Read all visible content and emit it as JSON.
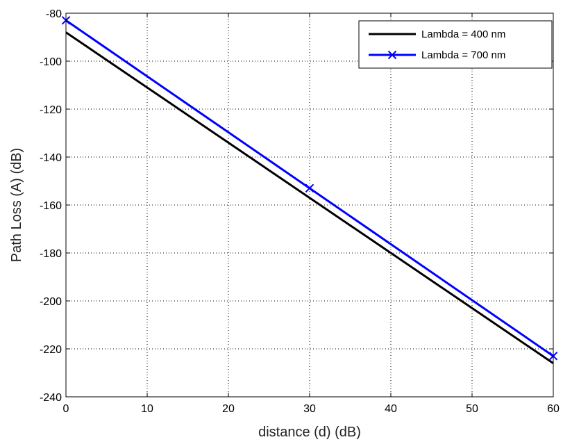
{
  "chart_data": {
    "type": "line",
    "xlabel": "distance (d) (dB)",
    "ylabel": "Path Loss (A)  (dB)",
    "xlim": [
      0,
      60
    ],
    "ylim": [
      -240,
      -80
    ],
    "xticks": [
      0,
      10,
      20,
      30,
      40,
      50,
      60
    ],
    "yticks": [
      -80,
      -100,
      -120,
      -140,
      -160,
      -180,
      -200,
      -220,
      -240
    ],
    "grid": true,
    "legend_position": "top-right",
    "series": [
      {
        "name": "Lambda = 400 nm",
        "color": "#000000",
        "marker": "none",
        "x": [
          0,
          60
        ],
        "y": [
          -88,
          -226
        ]
      },
      {
        "name": "Lambda = 700 nm",
        "color": "#0000ff",
        "marker": "x",
        "x": [
          0,
          30,
          60
        ],
        "y": [
          -83,
          -153,
          -223
        ]
      }
    ]
  }
}
